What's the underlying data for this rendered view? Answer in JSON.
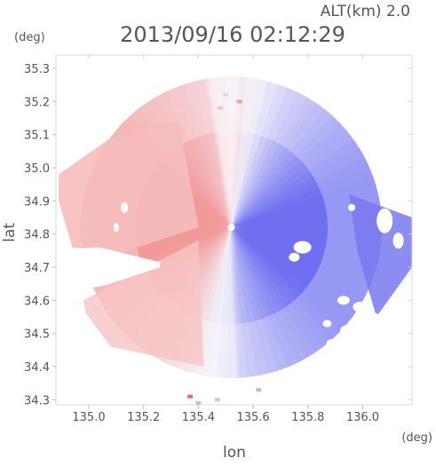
{
  "chart_data": {
    "type": "heatmap",
    "title": "2013/09/16 02:12:29",
    "altitude_label": "ALT(km) 2.0",
    "xlabel": "lon",
    "ylabel": "lat",
    "x_unit": "(deg)",
    "y_unit": "(deg)",
    "xlim": [
      134.88,
      136.18
    ],
    "ylim": [
      34.285,
      35.34
    ],
    "x_ticks": [
      135.0,
      135.2,
      135.4,
      135.6,
      135.8,
      136.0
    ],
    "x_tick_labels": [
      "135.0",
      "135.2",
      "135.4",
      "135.6",
      "135.8",
      "136.0"
    ],
    "y_ticks": [
      34.3,
      34.4,
      34.5,
      34.6,
      34.7,
      34.8,
      34.9,
      35.0,
      35.1,
      35.2,
      35.3
    ],
    "y_tick_labels": [
      "34.3",
      "34.4",
      "34.5",
      "34.6",
      "34.7",
      "34.8",
      "34.9",
      "35.0",
      "35.1",
      "35.2",
      "35.3"
    ],
    "radar_center": {
      "lon": 135.52,
      "lat": 34.82
    },
    "radar_range_deg": 0.55,
    "colors": {
      "toward": "#6f6ff0",
      "away": "#f29a9a",
      "neutral": "#f2f2fa"
    },
    "legend": "none",
    "grid": false
  }
}
